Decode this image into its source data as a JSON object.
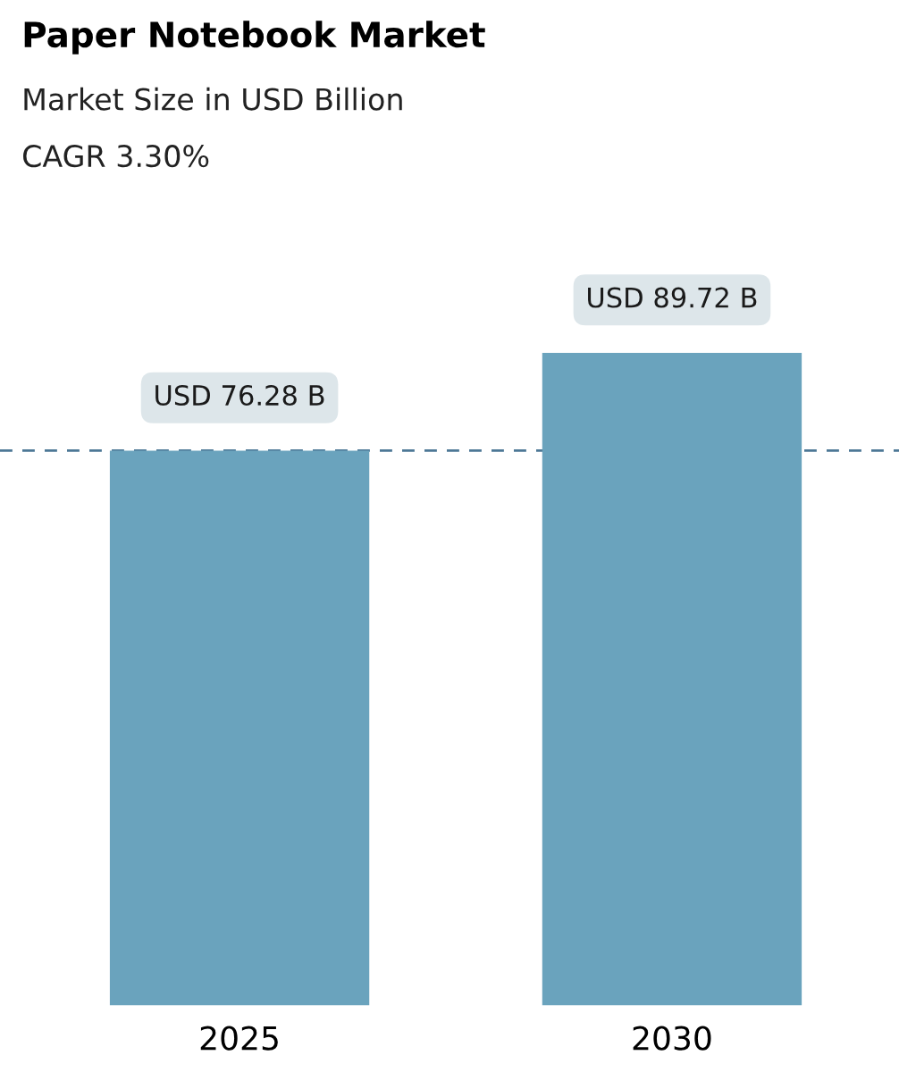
{
  "chart_data": {
    "type": "bar",
    "title": "Paper Notebook Market",
    "subtitle": "Market Size in USD Billion",
    "annotations": [
      "CAGR 3.30%"
    ],
    "categories": [
      "2025",
      "2030"
    ],
    "values": [
      76.28,
      89.72
    ],
    "value_labels": [
      "USD 76.28 B",
      "USD 89.72 B"
    ],
    "color": "#6aa3bd",
    "ref_lines": [
      {
        "axis": "y",
        "value": 76.28,
        "color": "#4d7896",
        "line_style": "dashed"
      }
    ],
    "grid": false,
    "legend": false
  }
}
